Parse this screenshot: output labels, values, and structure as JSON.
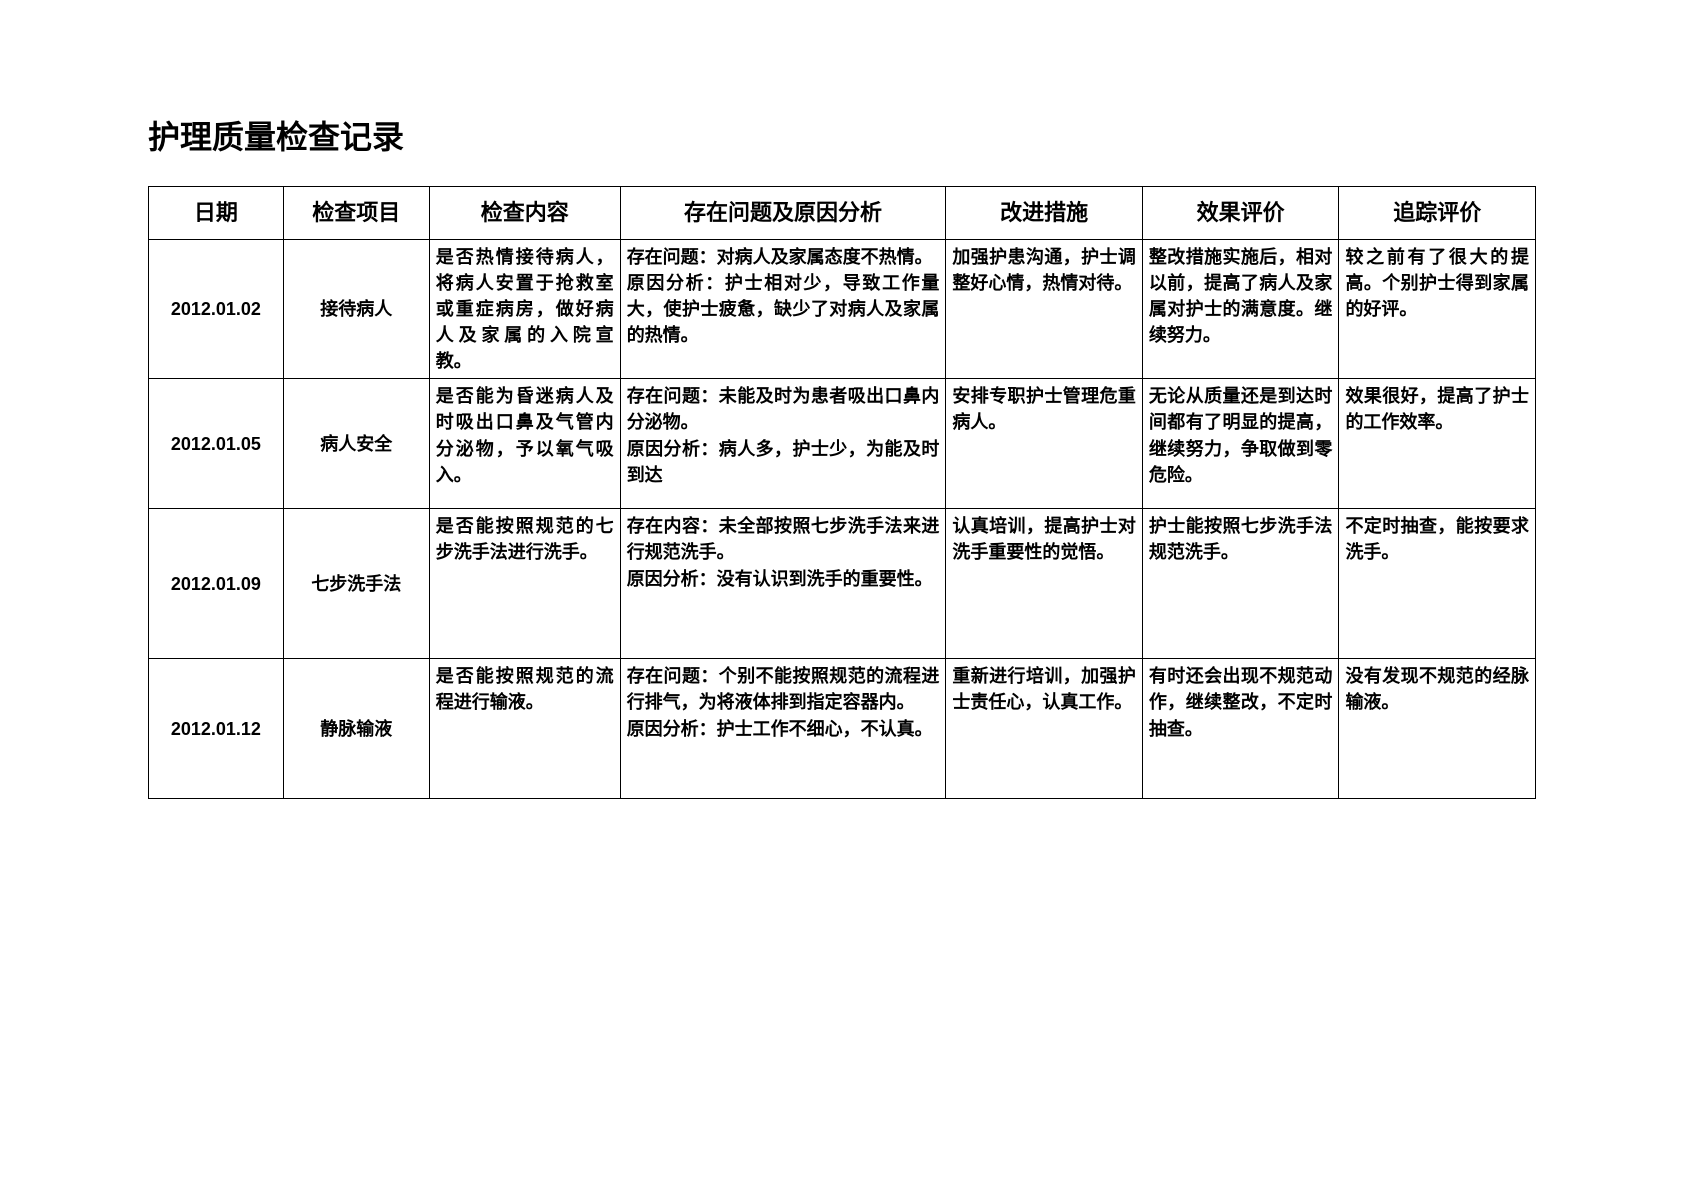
{
  "title": "护理质量检查记录",
  "columns": {
    "date": "日期",
    "item": "检查项目",
    "content": "检查内容",
    "problem": "存在问题及原因分析",
    "improve": "改进措施",
    "effect": "效果评价",
    "track": "追踪评价"
  },
  "rows": [
    {
      "date": "2012.01.02",
      "item": "接待病人",
      "content": "是否热情接待病人，将病人安置于抢救室或重症病房，做好病人及家属的入院宣教。",
      "problem": "存在问题：对病人及家属态度不热情。\n原因分析：护士相对少，导致工作量大，使护士疲惫，缺少了对病人及家属的热情。",
      "improve": "加强护患沟通，护士调整好心情，热情对待。",
      "effect": "整改措施实施后，相对以前，提高了病人及家属对护士的满意度。继续努力。",
      "track": "较之前有了很大的提高。个别护士得到家属的好评。"
    },
    {
      "date": "2012.01.05",
      "item": "病人安全",
      "content": "是否能为昏迷病人及时吸出口鼻及气管内分泌物，予以氧气吸入。",
      "problem": "存在问题：未能及时为患者吸出口鼻内分泌物。\n原因分析：病人多，护士少，为能及时到达",
      "improve": "安排专职护士管理危重病人。",
      "effect": "无论从质量还是到达时间都有了明显的提高，继续努力，争取做到零危险。",
      "track": "效果很好，提高了护士的工作效率。"
    },
    {
      "date": "2012.01.09",
      "item": "七步洗手法",
      "content": "是否能按照规范的七步洗手法进行洗手。",
      "problem": "存在内容：未全部按照七步洗手法来进行规范洗手。\n原因分析：没有认识到洗手的重要性。",
      "improve": "认真培训，提高护士对洗手重要性的觉悟。",
      "effect": "护士能按照七步洗手法规范洗手。",
      "track": "不定时抽查，能按要求洗手。"
    },
    {
      "date": "2012.01.12",
      "item": "静脉输液",
      "content": "是否能按照规范的流程进行输液。",
      "problem": "存在问题：个别不能按照规范的流程进行排气，为将液体排到指定容器内。\n原因分析：护士工作不细心，不认真。",
      "improve": "重新进行培训，加强护士责任心，认真工作。",
      "effect": "有时还会出现不规范动作，继续整改，不定时抽查。",
      "track": "没有发现不规范的经脉输液。"
    }
  ]
}
